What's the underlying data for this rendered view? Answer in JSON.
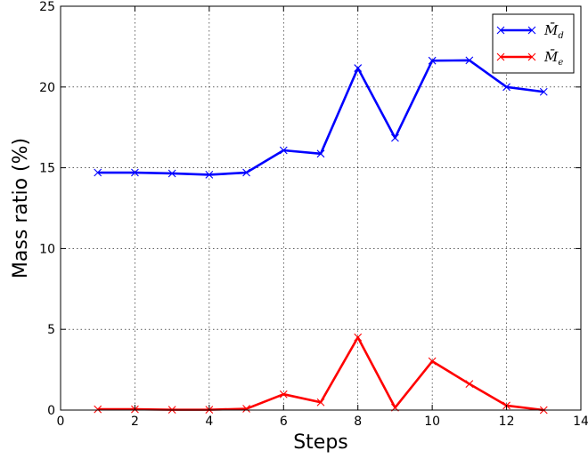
{
  "chart_data": {
    "type": "line",
    "title": "",
    "xlabel": "Steps",
    "ylabel": "Mass ratio (%)",
    "xlim": [
      0,
      14
    ],
    "ylim": [
      0,
      25
    ],
    "xticks": [
      0,
      2,
      4,
      6,
      8,
      10,
      12,
      14
    ],
    "yticks": [
      0,
      5,
      10,
      15,
      20,
      25
    ],
    "grid": true,
    "legend_position": "top-right",
    "series": [
      {
        "name": "M̄",
        "subscript": "d",
        "color": "#0000ff",
        "marker": "x",
        "x": [
          1,
          2,
          3,
          4,
          5,
          6,
          7,
          8,
          9,
          10,
          11,
          12,
          13
        ],
        "y": [
          14.7,
          14.7,
          14.65,
          14.57,
          14.7,
          16.08,
          15.87,
          21.17,
          16.85,
          21.63,
          21.65,
          20.0,
          19.7
        ]
      },
      {
        "name": "M̄",
        "subscript": "e",
        "color": "#ff0000",
        "marker": "x",
        "x": [
          1,
          2,
          3,
          4,
          5,
          6,
          7,
          8,
          9,
          10,
          11,
          12,
          13
        ],
        "y": [
          0.05,
          0.05,
          0.02,
          0.02,
          0.08,
          0.98,
          0.48,
          4.5,
          0.15,
          3.02,
          1.62,
          0.28,
          0.0
        ]
      }
    ]
  }
}
